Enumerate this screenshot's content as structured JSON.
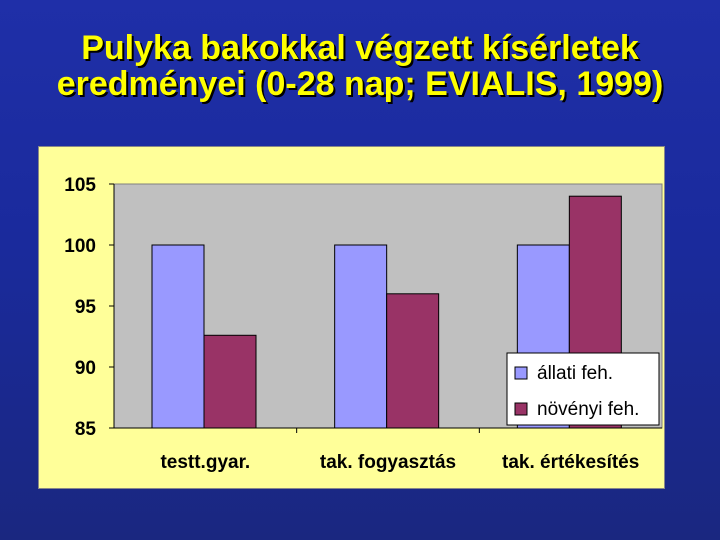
{
  "slide": {
    "title_line1": "Pulyka bakokkal végzett kísérletek",
    "title_line2": "eredményei (0-28 nap; EVIALIS, 1999)"
  },
  "colors": {
    "title": "#ffff00",
    "chart_area": "#ffff99",
    "plot_area": "#c0c0c0",
    "series1": "#9999ff",
    "series2": "#993366"
  },
  "chart_data": {
    "type": "bar",
    "categories": [
      "testt.gyar.",
      "tak. fogyasztás",
      "tak. értékesítés"
    ],
    "series": [
      {
        "name": "állati feh.",
        "values": [
          100,
          100,
          100
        ]
      },
      {
        "name": "növényi feh.",
        "values": [
          92.6,
          96,
          104
        ]
      }
    ],
    "ylim": [
      85,
      105
    ],
    "yticks": [
      85,
      90,
      95,
      100,
      105
    ],
    "grid": false,
    "legend_position": "bottom-right"
  }
}
